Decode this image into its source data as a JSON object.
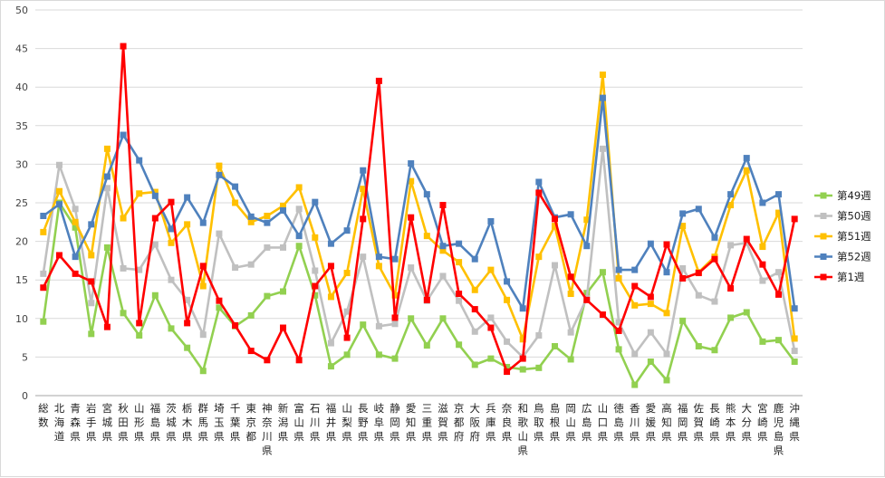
{
  "chart_data": {
    "type": "line",
    "title": "",
    "xlabel": "",
    "ylabel": "",
    "ylim": [
      0,
      50
    ],
    "yticks": [
      0,
      5,
      10,
      15,
      20,
      25,
      30,
      35,
      40,
      45,
      50
    ],
    "grid": "horizontal",
    "legend_position": "right",
    "categories": [
      "総数",
      "北海道",
      "青森県",
      "岩手県",
      "宮城県",
      "秋田県",
      "山形県",
      "福島県",
      "茨城県",
      "栃木県",
      "群馬県",
      "埼玉県",
      "千葉県",
      "東京都",
      "神奈川県",
      "新潟県",
      "富山県",
      "石川県",
      "福井県",
      "山梨県",
      "長野県",
      "岐阜県",
      "静岡県",
      "愛知県",
      "三重県",
      "滋賀県",
      "京都府",
      "大阪府",
      "兵庫県",
      "奈良県",
      "和歌山県",
      "鳥取県",
      "島根県",
      "岡山県",
      "広島県",
      "山口県",
      "徳島県",
      "香川県",
      "愛媛県",
      "高知県",
      "福岡県",
      "佐賀県",
      "長崎県",
      "熊本県",
      "大分県",
      "宮崎県",
      "鹿児島県",
      "沖縄県"
    ],
    "series": [
      {
        "name": "第49週",
        "color": "#92d050",
        "marker": "square",
        "values": [
          9.6,
          25.0,
          21.8,
          8.0,
          19.2,
          10.7,
          7.8,
          13.0,
          8.7,
          6.2,
          3.2,
          11.4,
          9.0,
          10.4,
          12.9,
          13.5,
          19.4,
          13.0,
          3.8,
          5.3,
          9.2,
          5.3,
          4.8,
          10.0,
          6.5,
          10.0,
          6.6,
          4.0,
          4.8,
          3.7,
          3.4,
          3.6,
          6.4,
          4.7,
          13.3,
          16.0,
          6.0,
          1.4,
          4.4,
          2.0,
          9.7,
          6.4,
          5.9,
          10.1,
          10.8,
          7.0,
          7.2,
          4.4
        ]
      },
      {
        "name": "第50週",
        "color": "#c0c0c0",
        "marker": "square",
        "values": [
          15.8,
          29.9,
          24.2,
          12.0,
          26.9,
          16.5,
          16.3,
          19.6,
          15.0,
          12.4,
          7.9,
          21.0,
          16.6,
          17.0,
          19.2,
          19.2,
          24.2,
          16.2,
          6.8,
          10.9,
          18.0,
          9.0,
          9.3,
          16.6,
          12.3,
          15.5,
          12.3,
          8.3,
          10.1,
          7.0,
          5.0,
          7.8,
          16.9,
          8.2,
          12.6,
          32.0,
          9.5,
          5.4,
          8.2,
          5.4,
          16.5,
          13.0,
          12.2,
          19.5,
          19.8,
          14.9,
          16.0,
          5.8
        ]
      },
      {
        "name": "第51週",
        "color": "#ffc000",
        "marker": "square",
        "values": [
          21.2,
          26.5,
          22.5,
          18.2,
          32.0,
          23.0,
          26.2,
          26.4,
          19.8,
          22.2,
          14.2,
          29.8,
          25.0,
          22.5,
          23.3,
          24.6,
          27.0,
          20.5,
          12.8,
          15.9,
          26.8,
          16.8,
          13.0,
          27.8,
          20.7,
          18.8,
          17.3,
          13.7,
          16.3,
          12.4,
          7.3,
          18.0,
          22.0,
          13.2,
          22.8,
          41.6,
          15.2,
          11.7,
          11.9,
          10.7,
          22.0,
          16.0,
          18.0,
          24.7,
          29.2,
          19.3,
          23.7,
          7.4
        ]
      },
      {
        "name": "第52週",
        "color": "#4f81bd",
        "marker": "square",
        "values": [
          23.3,
          24.8,
          18.0,
          22.2,
          28.4,
          33.8,
          30.5,
          25.9,
          21.6,
          25.7,
          22.4,
          28.6,
          27.1,
          23.2,
          22.4,
          24.0,
          20.7,
          25.1,
          19.7,
          21.4,
          29.2,
          18.0,
          17.7,
          30.1,
          26.1,
          19.4,
          19.7,
          17.7,
          22.6,
          14.8,
          11.3,
          27.7,
          23.1,
          23.5,
          19.4,
          38.6,
          16.3,
          16.3,
          19.7,
          16.0,
          23.6,
          24.2,
          20.5,
          26.1,
          30.8,
          25.0,
          26.1,
          11.3
        ]
      },
      {
        "name": "第1週",
        "color": "#ff0000",
        "marker": "square",
        "values": [
          14.0,
          18.2,
          15.8,
          14.8,
          8.9,
          45.3,
          9.4,
          23.0,
          25.1,
          9.4,
          16.8,
          12.3,
          9.1,
          5.8,
          4.6,
          8.8,
          4.6,
          14.2,
          16.8,
          7.5,
          22.9,
          40.8,
          10.1,
          23.1,
          12.4,
          24.7,
          13.2,
          11.2,
          8.8,
          3.1,
          4.8,
          26.3,
          22.9,
          15.4,
          12.4,
          10.5,
          8.4,
          14.2,
          12.8,
          19.6,
          15.2,
          15.9,
          17.7,
          13.9,
          20.3,
          17.0,
          13.1,
          22.9
        ]
      }
    ]
  }
}
